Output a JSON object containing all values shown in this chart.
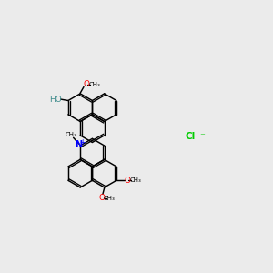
{
  "bg_color": "#ebebeb",
  "bond_color": "#000000",
  "figsize": [
    3.0,
    3.0
  ],
  "dpi": 100,
  "xlim": [
    0,
    10
  ],
  "ylim": [
    0,
    10
  ]
}
